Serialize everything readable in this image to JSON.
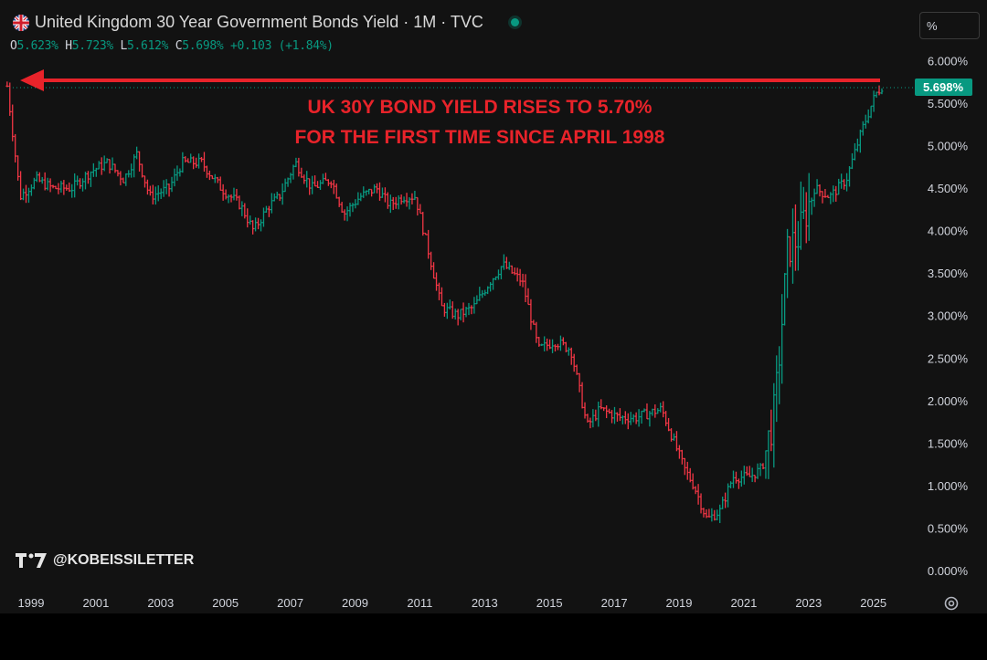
{
  "header": {
    "title": "United Kingdom 30 Year Government Bonds Yield · 1M · TVC",
    "ohlc": {
      "o_label": "O",
      "o": "5.623%",
      "h_label": "H",
      "h": "5.723%",
      "l_label": "L",
      "l": "5.612%",
      "c_label": "C",
      "c": "5.698%",
      "change": "+0.103 (+1.84%)"
    },
    "unit_selector": "%"
  },
  "annotation": {
    "line1": "UK 30Y BOND YIELD RISES TO 5.70%",
    "line2": "FOR THE FIRST TIME SINCE APRIL 1998",
    "color": "#e8232a"
  },
  "watermark": {
    "text": "@KOBEISSILETTER"
  },
  "colors": {
    "up": "#089981",
    "down": "#f23645",
    "background": "#121212",
    "axis_text": "#d1d4dc"
  },
  "chart_data": {
    "type": "ohlc_bars",
    "interval": "1M",
    "x_tick_labels": [
      "1999",
      "2001",
      "2003",
      "2005",
      "2007",
      "2009",
      "2011",
      "2013",
      "2015",
      "2017",
      "2019",
      "2021",
      "2023",
      "2025"
    ],
    "y_tick_labels": [
      "0.000%",
      "0.500%",
      "1.000%",
      "1.500%",
      "2.000%",
      "2.500%",
      "3.000%",
      "3.500%",
      "4.000%",
      "4.500%",
      "5.000%",
      "5.500%",
      "6.000%"
    ],
    "ylim": [
      0,
      6.0
    ],
    "last_price_label": "5.698%",
    "last_price": 5.698,
    "reference_level": 5.7,
    "series_points": [
      {
        "date": "1998.6",
        "close": 5.7
      },
      {
        "date": "1999.0",
        "close": 4.4
      },
      {
        "date": "1999.5",
        "close": 4.6
      },
      {
        "date": "2000.0",
        "close": 4.5
      },
      {
        "date": "2000.6",
        "close": 4.5
      },
      {
        "date": "2001.2",
        "close": 4.7
      },
      {
        "date": "2001.7",
        "close": 4.8
      },
      {
        "date": "2002.2",
        "close": 4.6
      },
      {
        "date": "2002.6",
        "close": 4.9
      },
      {
        "date": "2003.0",
        "close": 4.4
      },
      {
        "date": "2003.6",
        "close": 4.5
      },
      {
        "date": "2004.0",
        "close": 4.8
      },
      {
        "date": "2004.6",
        "close": 4.8
      },
      {
        "date": "2005.2",
        "close": 4.5
      },
      {
        "date": "2005.8",
        "close": 4.3
      },
      {
        "date": "2006.2",
        "close": 4.0
      },
      {
        "date": "2006.7",
        "close": 4.3
      },
      {
        "date": "2007.0",
        "close": 4.4
      },
      {
        "date": "2007.5",
        "close": 4.8
      },
      {
        "date": "2008.0",
        "close": 4.5
      },
      {
        "date": "2008.6",
        "close": 4.6
      },
      {
        "date": "2009.0",
        "close": 4.2
      },
      {
        "date": "2009.5",
        "close": 4.4
      },
      {
        "date": "2010.0",
        "close": 4.5
      },
      {
        "date": "2010.4",
        "close": 4.3
      },
      {
        "date": "2010.8",
        "close": 4.4
      },
      {
        "date": "2011.2",
        "close": 4.4
      },
      {
        "date": "2011.7",
        "close": 3.6
      },
      {
        "date": "2012.0",
        "close": 3.1
      },
      {
        "date": "2012.5",
        "close": 3.0
      },
      {
        "date": "2013.0",
        "close": 3.1
      },
      {
        "date": "2013.5",
        "close": 3.4
      },
      {
        "date": "2013.9",
        "close": 3.6
      },
      {
        "date": "2014.5",
        "close": 3.4
      },
      {
        "date": "2015.0",
        "close": 2.6
      },
      {
        "date": "2015.5",
        "close": 2.7
      },
      {
        "date": "2016.0",
        "close": 2.6
      },
      {
        "date": "2016.5",
        "close": 1.7
      },
      {
        "date": "2016.9",
        "close": 1.9
      },
      {
        "date": "2017.5",
        "close": 1.8
      },
      {
        "date": "2018.0",
        "close": 1.8
      },
      {
        "date": "2018.8",
        "close": 1.9
      },
      {
        "date": "2019.5",
        "close": 1.2
      },
      {
        "date": "2019.8",
        "close": 1.0
      },
      {
        "date": "2020.2",
        "close": 0.6
      },
      {
        "date": "2020.6",
        "close": 0.7
      },
      {
        "date": "2021.0",
        "close": 1.1
      },
      {
        "date": "2021.5",
        "close": 1.1
      },
      {
        "date": "2021.9",
        "close": 1.2
      },
      {
        "date": "2022.3",
        "close": 1.9
      },
      {
        "date": "2022.7",
        "close": 3.8
      },
      {
        "date": "2023.0",
        "close": 3.9
      },
      {
        "date": "2023.5",
        "close": 4.5
      },
      {
        "date": "2024.0",
        "close": 4.4
      },
      {
        "date": "2024.5",
        "close": 4.6
      },
      {
        "date": "2025.0",
        "close": 5.2
      },
      {
        "date": "2025.4",
        "close": 5.6
      },
      {
        "date": "2025.6",
        "close": 5.698
      }
    ]
  }
}
